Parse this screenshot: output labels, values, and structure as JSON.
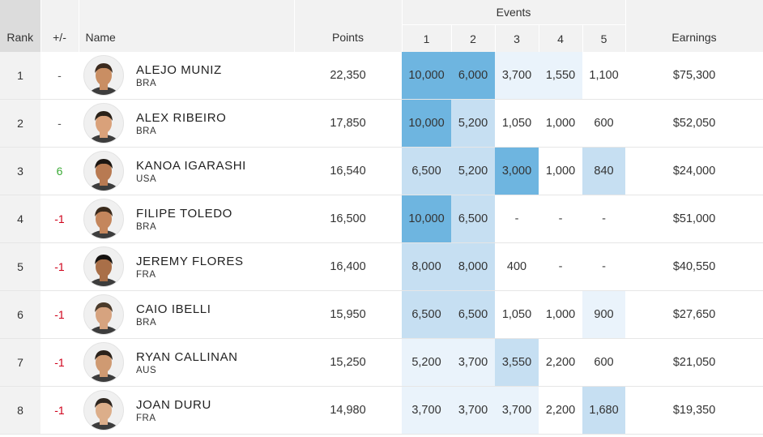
{
  "header": {
    "rank": "Rank",
    "change": "+/-",
    "name": "Name",
    "points": "Points",
    "events": "Events",
    "event_numbers": [
      "1",
      "2",
      "3",
      "4",
      "5"
    ],
    "earnings": "Earnings"
  },
  "colors": {
    "heat_high": "#6eb5e0",
    "heat_mid": "#c6dff2",
    "heat_low": "#eaf3fb",
    "change_up": "#3aaa35",
    "change_down": "#d0021b"
  },
  "rows": [
    {
      "rank": "1",
      "change": "-",
      "change_dir": "same",
      "name": "ALEJO MUNIZ",
      "country": "BRA",
      "points": "22,350",
      "events": [
        "10,000",
        "6,000",
        "3,700",
        "1,550",
        "1,100"
      ],
      "heat": [
        3,
        3,
        1,
        1,
        0
      ],
      "earnings": "$75,300"
    },
    {
      "rank": "2",
      "change": "-",
      "change_dir": "same",
      "name": "ALEX RIBEIRO",
      "country": "BRA",
      "points": "17,850",
      "events": [
        "10,000",
        "5,200",
        "1,050",
        "1,000",
        "600"
      ],
      "heat": [
        3,
        2,
        0,
        0,
        0
      ],
      "earnings": "$52,050"
    },
    {
      "rank": "3",
      "change": "6",
      "change_dir": "up",
      "name": "KANOA IGARASHI",
      "country": "USA",
      "points": "16,540",
      "events": [
        "6,500",
        "5,200",
        "3,000",
        "1,000",
        "840"
      ],
      "heat": [
        2,
        2,
        3,
        0,
        2
      ],
      "earnings": "$24,000"
    },
    {
      "rank": "4",
      "change": "-1",
      "change_dir": "down",
      "name": "FILIPE TOLEDO",
      "country": "BRA",
      "points": "16,500",
      "events": [
        "10,000",
        "6,500",
        "-",
        "-",
        "-"
      ],
      "heat": [
        3,
        2,
        0,
        0,
        0
      ],
      "earnings": "$51,000"
    },
    {
      "rank": "5",
      "change": "-1",
      "change_dir": "down",
      "name": "JEREMY FLORES",
      "country": "FRA",
      "points": "16,400",
      "events": [
        "8,000",
        "8,000",
        "400",
        "-",
        "-"
      ],
      "heat": [
        2,
        2,
        0,
        0,
        0
      ],
      "earnings": "$40,550"
    },
    {
      "rank": "6",
      "change": "-1",
      "change_dir": "down",
      "name": "CAIO IBELLI",
      "country": "BRA",
      "points": "15,950",
      "events": [
        "6,500",
        "6,500",
        "1,050",
        "1,000",
        "900"
      ],
      "heat": [
        2,
        2,
        0,
        0,
        1
      ],
      "earnings": "$27,650"
    },
    {
      "rank": "7",
      "change": "-1",
      "change_dir": "down",
      "name": "RYAN CALLINAN",
      "country": "AUS",
      "points": "15,250",
      "events": [
        "5,200",
        "3,700",
        "3,550",
        "2,200",
        "600"
      ],
      "heat": [
        1,
        1,
        2,
        0,
        0
      ],
      "earnings": "$21,050"
    },
    {
      "rank": "8",
      "change": "-1",
      "change_dir": "down",
      "name": "JOAN DURU",
      "country": "FRA",
      "points": "14,980",
      "events": [
        "3,700",
        "3,700",
        "3,700",
        "2,200",
        "1,680"
      ],
      "heat": [
        1,
        1,
        1,
        0,
        2
      ],
      "earnings": "$19,350"
    }
  ]
}
